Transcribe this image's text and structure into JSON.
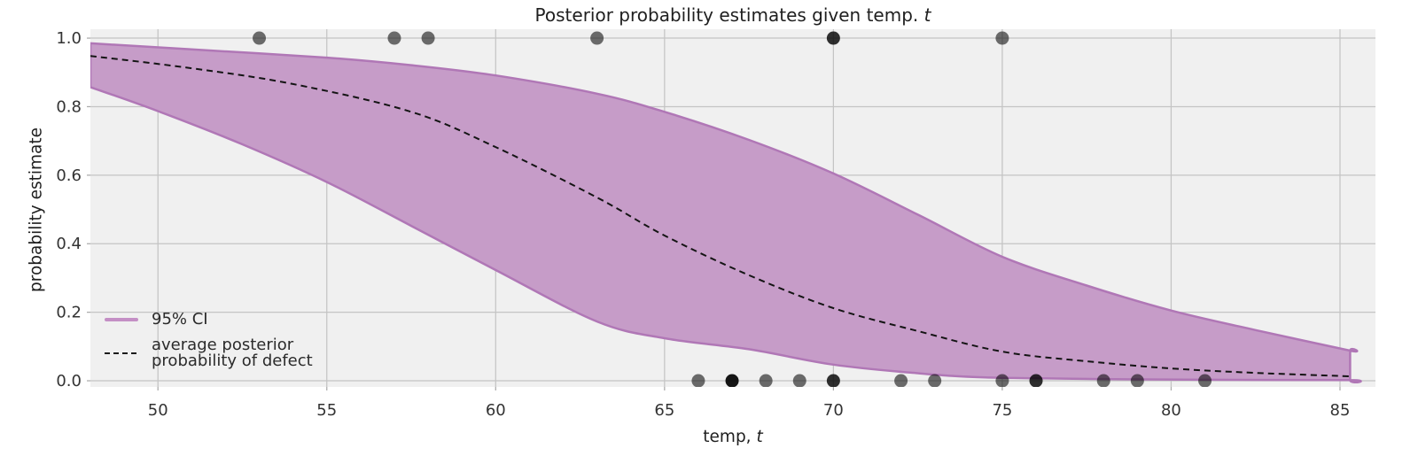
{
  "chart_data": {
    "type": "area",
    "title": {
      "text": "Posterior probability estimates given temp. ",
      "math_suffix": "t"
    },
    "xlabel": {
      "text": "temp, ",
      "math_suffix": "t"
    },
    "ylabel": "probability estimate",
    "xlim": [
      48,
      86.05
    ],
    "ylim": [
      -0.018,
      1.026
    ],
    "x_ticks": [
      50,
      55,
      60,
      65,
      70,
      75,
      80,
      85
    ],
    "y_ticks": [
      0.0,
      0.2,
      0.4,
      0.6,
      0.8,
      1.0
    ],
    "y_tick_labels": [
      "0.0",
      "0.2",
      "0.4",
      "0.6",
      "0.8",
      "1.0"
    ],
    "grid": true,
    "legend": {
      "position": "lower-left",
      "items": [
        {
          "label": "95% CI",
          "marker": "line",
          "color": "#c48fc5"
        },
        {
          "label_line1": "average posterior",
          "label_line2": "probability of defect",
          "marker": "dashed-line",
          "color": "#1a1a1a"
        }
      ]
    },
    "ci_band": {
      "label": "95% CI",
      "fill": "#c69cc8",
      "edge": "#b077b6",
      "upper": [
        [
          48,
          0.985
        ],
        [
          51,
          0.967
        ],
        [
          55,
          0.943
        ],
        [
          57.5,
          0.921
        ],
        [
          60,
          0.891
        ],
        [
          63,
          0.838
        ],
        [
          65,
          0.785
        ],
        [
          67.5,
          0.703
        ],
        [
          70,
          0.605
        ],
        [
          72.5,
          0.485
        ],
        [
          75,
          0.362
        ],
        [
          77.5,
          0.278
        ],
        [
          80,
          0.205
        ],
        [
          82.5,
          0.148
        ],
        [
          85.3,
          0.088
        ]
      ],
      "lower": [
        [
          48,
          0.857
        ],
        [
          50,
          0.787
        ],
        [
          52.5,
          0.69
        ],
        [
          55,
          0.58
        ],
        [
          57.5,
          0.452
        ],
        [
          60,
          0.323
        ],
        [
          63,
          0.173
        ],
        [
          65,
          0.124
        ],
        [
          67.5,
          0.092
        ],
        [
          70,
          0.047
        ],
        [
          72.5,
          0.022
        ],
        [
          74.5,
          0.01
        ],
        [
          78,
          0.005
        ],
        [
          81,
          0.003
        ],
        [
          85.3,
          0.002
        ]
      ]
    },
    "mean_line": {
      "label": "average posterior probability of defect",
      "color": "#141414",
      "dash": [
        7,
        5
      ],
      "points": [
        [
          48,
          0.948
        ],
        [
          51,
          0.912
        ],
        [
          54,
          0.866
        ],
        [
          57.5,
          0.785
        ],
        [
          60,
          0.682
        ],
        [
          63,
          0.535
        ],
        [
          65,
          0.424
        ],
        [
          67.5,
          0.308
        ],
        [
          70,
          0.212
        ],
        [
          72.5,
          0.145
        ],
        [
          75,
          0.085
        ],
        [
          77.5,
          0.057
        ],
        [
          80,
          0.036
        ],
        [
          82.5,
          0.023
        ],
        [
          85.3,
          0.013
        ]
      ]
    },
    "observations": {
      "marker_color": "#000000",
      "single_alpha": 0.56,
      "radius": 7.5,
      "defect_y": 1.0,
      "no_defect_y": 0.0,
      "defect": [
        [
          53,
          1
        ],
        [
          57,
          1
        ],
        [
          58,
          1
        ],
        [
          63,
          1
        ],
        [
          70,
          2
        ],
        [
          75,
          1
        ]
      ],
      "no_defect": [
        [
          66,
          1
        ],
        [
          67,
          3
        ],
        [
          68,
          1
        ],
        [
          69,
          1
        ],
        [
          70,
          2
        ],
        [
          72,
          1
        ],
        [
          73,
          1
        ],
        [
          75,
          1
        ],
        [
          76,
          2
        ],
        [
          78,
          1
        ],
        [
          79,
          1
        ],
        [
          81,
          1
        ]
      ]
    },
    "colors": {
      "figure_bg": "#ffffff",
      "plot_bg": "#f0f0f0",
      "grid": "#c4c4c4",
      "tick": "#ababab",
      "tick_text": "#333333",
      "text": "#1f1f1f"
    }
  }
}
